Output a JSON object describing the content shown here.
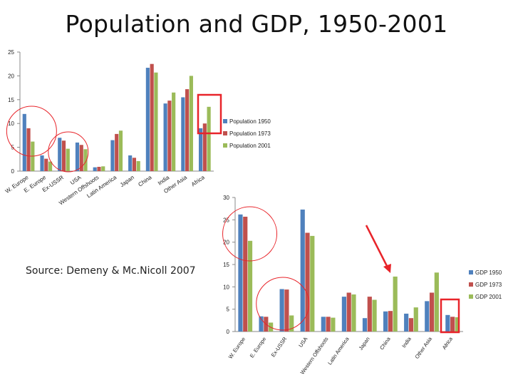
{
  "title": "Population and GDP, 1950-2001",
  "source": "Source: Demeny & Mc.Nicoll 2007",
  "colors": {
    "s1950": "#4f81bd",
    "s1973": "#c0504d",
    "s2001": "#9bbb59",
    "annotation": "#e8242a"
  },
  "chart_data": [
    {
      "type": "bar",
      "title": "",
      "categories": [
        "W. Europe",
        "E. Europe",
        "Ex-USSR",
        "USA",
        "Western Offshoots",
        "Latin America",
        "Japan",
        "China",
        "India",
        "Other Asia",
        "Africa"
      ],
      "series": [
        {
          "name": "Population 1950",
          "values": [
            12,
            3.3,
            7,
            6,
            0.8,
            6.5,
            3.3,
            21.7,
            14.2,
            15.5,
            9
          ]
        },
        {
          "name": "Population 1973",
          "values": [
            9,
            2.6,
            6.4,
            5.5,
            0.9,
            7.8,
            2.8,
            22.5,
            14.8,
            17.2,
            10
          ]
        },
        {
          "name": "Population 2001",
          "values": [
            6.2,
            2,
            4.7,
            4.6,
            1,
            8.5,
            2.1,
            20.7,
            16.5,
            20,
            13.5
          ]
        }
      ],
      "ylim": [
        0,
        25
      ],
      "yticks": [
        0,
        5,
        10,
        15,
        20,
        25
      ],
      "legend": "right",
      "grid": false
    },
    {
      "type": "bar",
      "title": "",
      "categories": [
        "W. Europe",
        "E. Europe",
        "Ex-USSR",
        "USA",
        "Western Offshoots",
        "Latin America",
        "Japan",
        "China",
        "India",
        "Other Asia",
        "Africa"
      ],
      "series": [
        {
          "name": "GDP 1950",
          "values": [
            26.2,
            3.4,
            9.5,
            27.3,
            3.3,
            7.8,
            3,
            4.5,
            4,
            6.8,
            3.7
          ]
        },
        {
          "name": "GDP 1973",
          "values": [
            25.7,
            3.3,
            9.4,
            22.1,
            3.3,
            8.7,
            7.8,
            4.6,
            3,
            8.7,
            3.3
          ]
        },
        {
          "name": "GDP 2001",
          "values": [
            20.3,
            2,
            3.6,
            21.4,
            3.1,
            8.3,
            7.1,
            12.3,
            5.4,
            13.2,
            3.2
          ]
        }
      ],
      "ylim": [
        0,
        30
      ],
      "yticks": [
        0,
        5,
        10,
        15,
        20,
        25,
        30
      ],
      "legend": "right",
      "grid": false
    }
  ]
}
